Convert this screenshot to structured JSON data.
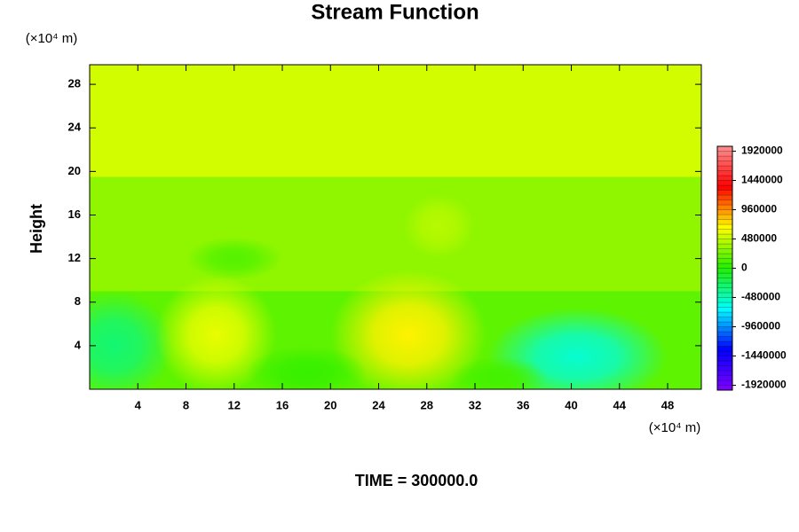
{
  "chart_data": {
    "type": "contour",
    "title": "Stream Function",
    "ylabel": "Height",
    "x_unit": "(×10⁴ m)",
    "y_unit": "(×10⁴ m)",
    "footer": "TIME = 300000.0",
    "xlim": [
      0,
      50.8
    ],
    "ylim": [
      0,
      29.8
    ],
    "xticks": [
      4,
      8,
      12,
      16,
      20,
      24,
      28,
      32,
      36,
      40,
      44,
      48
    ],
    "yticks": [
      4,
      8,
      12,
      16,
      20,
      24,
      28
    ],
    "layers": {
      "y_edges": [
        0,
        9,
        19.5
      ],
      "values": [
        180000,
        330000,
        530000
      ]
    },
    "blobs": {
      "x": [
        2,
        10.5,
        26.5,
        40.5,
        12,
        29,
        18,
        34
      ],
      "y": [
        4,
        5,
        5,
        3,
        12,
        15,
        1.5,
        1
      ],
      "rx": [
        5,
        5,
        6.5,
        7.5,
        4,
        3,
        5,
        4
      ],
      "ry": [
        5,
        5.5,
        6,
        4.5,
        2,
        3,
        2.5,
        2
      ],
      "values": [
        -300000,
        600000,
        700000,
        -550000,
        150000,
        450000,
        60000,
        100000
      ]
    },
    "colorbar": {
      "lim": [
        -2000000,
        2000000
      ],
      "step": 80000,
      "colors": [
        "#7f00ff",
        "#0000ff",
        "#00ffff",
        "#22ee00",
        "#ffff00",
        "#ff0000",
        "#ff9090"
      ],
      "ticks": [
        1920000,
        1440000,
        960000,
        480000,
        0,
        -480000,
        -960000,
        -1440000,
        -1920000
      ]
    }
  }
}
